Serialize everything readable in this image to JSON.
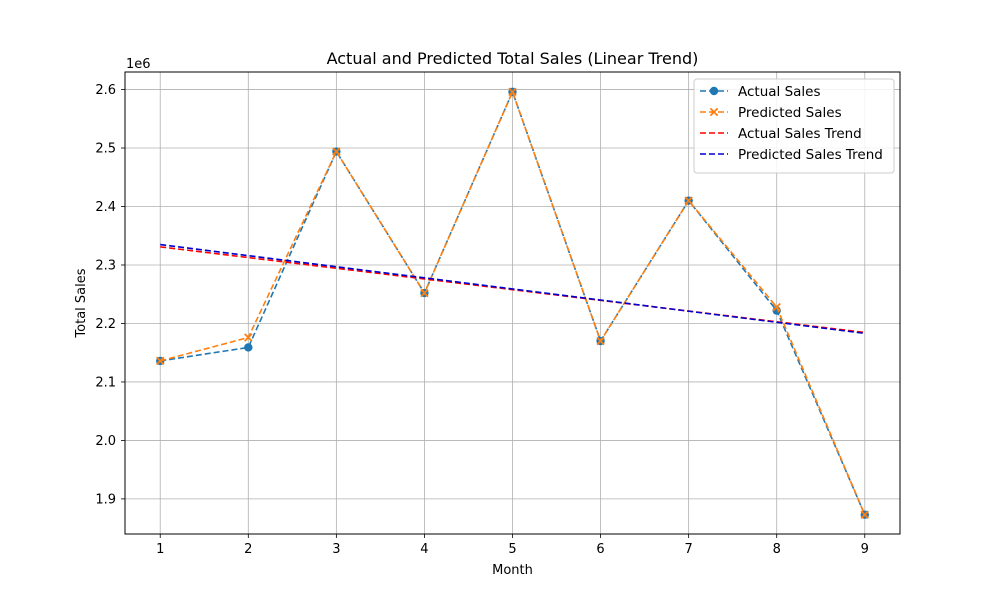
{
  "chart_data": {
    "type": "line",
    "title": "Actual and Predicted Total Sales (Linear Trend)",
    "xlabel": "Month",
    "ylabel": "Total Sales",
    "y_offset_label": "1e6",
    "y_scale": 1000000,
    "x": [
      1,
      2,
      3,
      4,
      5,
      6,
      7,
      8,
      9
    ],
    "x_ticks": [
      "1",
      "2",
      "3",
      "4",
      "5",
      "6",
      "7",
      "8",
      "9"
    ],
    "y_ticks": [
      1.9,
      2.0,
      2.1,
      2.2,
      2.3,
      2.4,
      2.5,
      2.6
    ],
    "y_tick_labels": [
      "1.9",
      "2.0",
      "2.1",
      "2.2",
      "2.3",
      "2.4",
      "2.5",
      "2.6"
    ],
    "xlim": [
      0.6,
      9.4
    ],
    "ylim": [
      1840000,
      2630000
    ],
    "grid": true,
    "legend_position": "top-right",
    "series": [
      {
        "name": "Actual Sales",
        "color": "#1f77b4",
        "line_style": "dashed",
        "marker": "circle",
        "values": [
          2136000,
          2159000,
          2494000,
          2252000,
          2596000,
          2170000,
          2410000,
          2222000,
          1873000
        ]
      },
      {
        "name": "Predicted Sales",
        "color": "#ff7f0e",
        "line_style": "dashed",
        "marker": "x",
        "values": [
          2136000,
          2176000,
          2494000,
          2252000,
          2596000,
          2170000,
          2410000,
          2228000,
          1873000
        ]
      },
      {
        "name": "Actual Sales Trend",
        "color": "#ff0000",
        "line_style": "dashed",
        "marker": "none",
        "values": [
          2331000,
          2312700,
          2294400,
          2276100,
          2257800,
          2239500,
          2221200,
          2202900,
          2184600
        ]
      },
      {
        "name": "Predicted Sales Trend",
        "color": "#0000cc",
        "line_style": "dashed",
        "marker": "none",
        "values": [
          2335000,
          2316000,
          2297000,
          2278000,
          2259000,
          2240000,
          2221000,
          2202000,
          2183000
        ]
      }
    ]
  }
}
